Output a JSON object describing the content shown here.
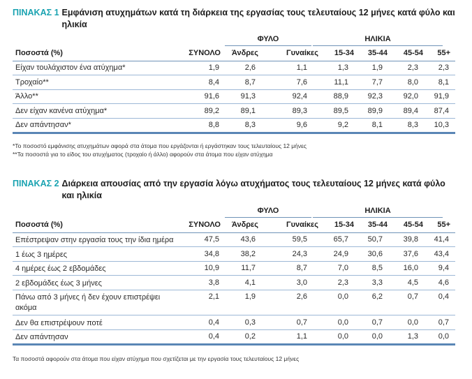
{
  "table1": {
    "tag": "ΠΙΝΑΚΑΣ 1",
    "title": "Εμφάνιση ατυχημάτων κατά τη διάρκεια της εργασίας τους τελευταίους 12 μήνες κατά φύλο και ηλικία",
    "group_headers": {
      "sex": "ΦΥΛΟ",
      "age": "ΗΛΙΚΙΑ"
    },
    "columns": [
      "Ποσοστά (%)",
      "ΣΥΝΟΛΟ",
      "Άνδρες",
      "Γυναίκες",
      "15-34",
      "35-44",
      "45-54",
      "55+"
    ],
    "rows": [
      {
        "label": "Είχαν τουλάχιστον ένα ατύχημα*",
        "values": [
          "1,9",
          "2,6",
          "1,1",
          "1,3",
          "1,9",
          "2,3",
          "2,3"
        ]
      },
      {
        "label": "Τροχαίο**",
        "values": [
          "8,4",
          "8,7",
          "7,6",
          "11,1",
          "7,7",
          "8,0",
          "8,1"
        ]
      },
      {
        "label": "Άλλο**",
        "values": [
          "91,6",
          "91,3",
          "92,4",
          "88,9",
          "92,3",
          "92,0",
          "91,9"
        ]
      },
      {
        "label": "Δεν είχαν κανένα ατύχημα*",
        "values": [
          "89,2",
          "89,1",
          "89,3",
          "89,5",
          "89,9",
          "89,4",
          "87,4"
        ]
      },
      {
        "label": "Δεν απάντησαν*",
        "values": [
          "8,8",
          "8,3",
          "9,6",
          "9,2",
          "8,1",
          "8,3",
          "10,3"
        ]
      }
    ],
    "footnotes": [
      "*Το ποσοστό εμφάνισης ατυχημάτων αφορά στα άτομα που εργάζονται ή εργάστηκαν τους τελευταίους 12 μήνες",
      "**Τα ποσοστά για το είδος του ατυχήματος (τροχαίο ή άλλο) αφορούν στα άτομα που είχαν ατύχημα"
    ]
  },
  "table2": {
    "tag": "ΠΙΝΑΚΑΣ 2",
    "title": "Διάρκεια απουσίας από την εργασία λόγω ατυχήματος τους τελευταίους 12 μήνες κατά φύλο και ηλικία",
    "group_headers": {
      "sex": "ΦΥΛΟ",
      "age": "ΗΛΙΚΙΑ"
    },
    "columns": [
      "Ποσοστά (%)",
      "ΣΥΝΟΛΟ",
      "Άνδρες",
      "Γυναίκες",
      "15-34",
      "35-44",
      "45-54",
      "55+"
    ],
    "rows": [
      {
        "label": "Επέστρεψαν στην εργασία τους την ίδια ημέρα",
        "values": [
          "47,5",
          "43,6",
          "59,5",
          "65,7",
          "50,7",
          "39,8",
          "41,4"
        ]
      },
      {
        "label": "1 έως 3 ημέρες",
        "values": [
          "34,8",
          "38,2",
          "24,3",
          "24,9",
          "30,6",
          "37,6",
          "43,4"
        ]
      },
      {
        "label": "4 ημέρες έως 2 εβδομάδες",
        "values": [
          "10,9",
          "11,7",
          "8,7",
          "7,0",
          "8,5",
          "16,0",
          "9,4"
        ]
      },
      {
        "label": "2 εβδομάδες έως 3 μήνες",
        "values": [
          "3,8",
          "4,1",
          "3,0",
          "2,3",
          "3,3",
          "4,5",
          "4,6"
        ]
      },
      {
        "label": "Πάνω από 3 μήνες ή δεν έχουν επιστρέψει ακόμα",
        "values": [
          "2,1",
          "1,9",
          "2,6",
          "0,0",
          "6,2",
          "0,7",
          "0,4"
        ]
      },
      {
        "label": "Δεν θα επιστρέψουν ποτέ",
        "values": [
          "0,4",
          "0,3",
          "0,7",
          "0,0",
          "0,7",
          "0,0",
          "0,7"
        ]
      },
      {
        "label": "Δεν απάντησαν",
        "values": [
          "0,4",
          "0,2",
          "1,1",
          "0,0",
          "0,0",
          "1,3",
          "0,0"
        ]
      }
    ],
    "footnotes": [
      "Τα ποσοστά αφορούν στα άτομα που είχαν ατύχημα που σχετίζεται με την εργασία τους τελευταίους 12 μήνες"
    ]
  },
  "colors": {
    "accent": "#1aa3b1",
    "rule": "#9db8d6",
    "rule_strong": "#5a86b5"
  }
}
